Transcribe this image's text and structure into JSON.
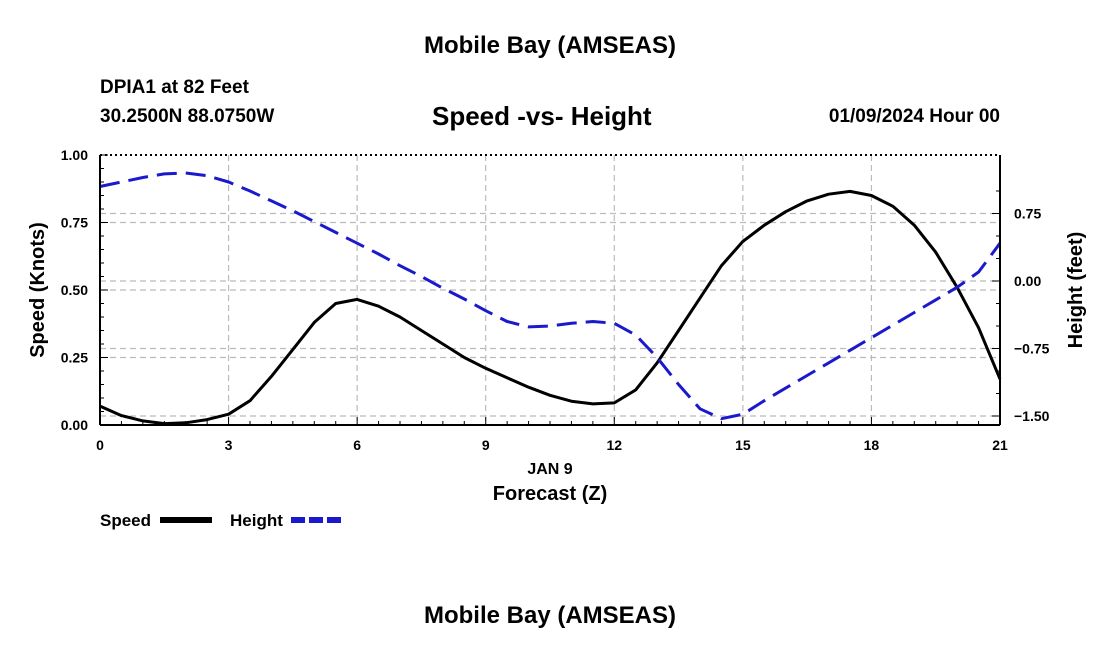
{
  "page": {
    "title_top": "Mobile Bay (AMSEAS)",
    "title_bottom": "Mobile Bay (AMSEAS)",
    "station": "DPIA1 at 82 Feet",
    "coords": "30.2500N  88.0750W",
    "date": "01/09/2024 Hour 00"
  },
  "colors": {
    "speed": "#000000",
    "height": "#1a1acc",
    "grid": "#bbbbbb"
  },
  "chart_data": {
    "type": "line",
    "title": "Speed -vs- Height",
    "xlabel": "Forecast (Z)",
    "xlabel_date": "JAN 9",
    "ylabel_left": "Speed (Knots)",
    "ylabel_right": "Height (feet)",
    "x_ticks": [
      0,
      3,
      6,
      9,
      12,
      15,
      18,
      21
    ],
    "x_tick_labels": [
      "0",
      "3",
      "6",
      "9",
      "12",
      "15",
      "18",
      "21"
    ],
    "xlim": [
      0,
      21
    ],
    "ylim_left": [
      0,
      1
    ],
    "ylim_right": [
      -1.6,
      1.4
    ],
    "y_left_ticks": [
      0,
      0.25,
      0.5,
      0.75,
      1.0
    ],
    "y_left_tick_labels": [
      "0.00",
      "0.25",
      "0.50",
      "0.75",
      "1.00"
    ],
    "y_right_ticks": [
      -1.5,
      -0.75,
      0,
      0.75
    ],
    "y_right_tick_labels": [
      "−1.50",
      "−0.75",
      "0.00",
      "0.75"
    ],
    "legend": [
      "Speed",
      "Height"
    ],
    "series": [
      {
        "name": "Speed",
        "axis": "left",
        "style": "solid",
        "x": [
          0,
          0.5,
          1,
          1.5,
          2,
          2.5,
          3,
          3.5,
          4,
          4.5,
          5,
          5.5,
          6,
          6.5,
          7,
          7.5,
          8,
          8.5,
          9,
          9.5,
          10,
          10.5,
          11,
          11.5,
          12,
          12.5,
          13,
          13.5,
          14,
          14.5,
          15,
          15.5,
          16,
          16.5,
          17,
          17.5,
          18,
          18.5,
          19,
          19.5,
          20,
          20.5,
          21
        ],
        "values": [
          0.07,
          0.035,
          0.015,
          0.005,
          0.008,
          0.02,
          0.04,
          0.09,
          0.18,
          0.28,
          0.38,
          0.45,
          0.465,
          0.44,
          0.4,
          0.35,
          0.3,
          0.25,
          0.21,
          0.175,
          0.14,
          0.11,
          0.088,
          0.078,
          0.082,
          0.13,
          0.23,
          0.35,
          0.47,
          0.59,
          0.68,
          0.74,
          0.79,
          0.83,
          0.855,
          0.865,
          0.85,
          0.81,
          0.74,
          0.64,
          0.51,
          0.36,
          0.17
        ]
      },
      {
        "name": "Height",
        "axis": "right",
        "style": "dashed",
        "x": [
          0,
          0.5,
          1,
          1.5,
          2,
          2.5,
          3,
          3.5,
          4,
          4.5,
          5,
          5.5,
          6,
          6.5,
          7,
          7.5,
          8,
          8.5,
          9,
          9.5,
          10,
          10.5,
          11,
          11.5,
          12,
          12.5,
          13,
          13.5,
          14,
          14.5,
          15,
          15.5,
          16,
          16.5,
          17,
          17.5,
          18,
          18.5,
          19,
          19.5,
          20,
          20.5,
          21
        ],
        "values": [
          1.05,
          1.1,
          1.15,
          1.19,
          1.2,
          1.17,
          1.1,
          1.0,
          0.89,
          0.78,
          0.66,
          0.54,
          0.42,
          0.3,
          0.17,
          0.05,
          -0.08,
          -0.2,
          -0.33,
          -0.45,
          -0.51,
          -0.5,
          -0.47,
          -0.45,
          -0.47,
          -0.6,
          -0.85,
          -1.15,
          -1.42,
          -1.53,
          -1.48,
          -1.33,
          -1.19,
          -1.05,
          -0.91,
          -0.77,
          -0.63,
          -0.49,
          -0.35,
          -0.21,
          -0.07,
          0.1,
          0.42
        ]
      }
    ]
  }
}
